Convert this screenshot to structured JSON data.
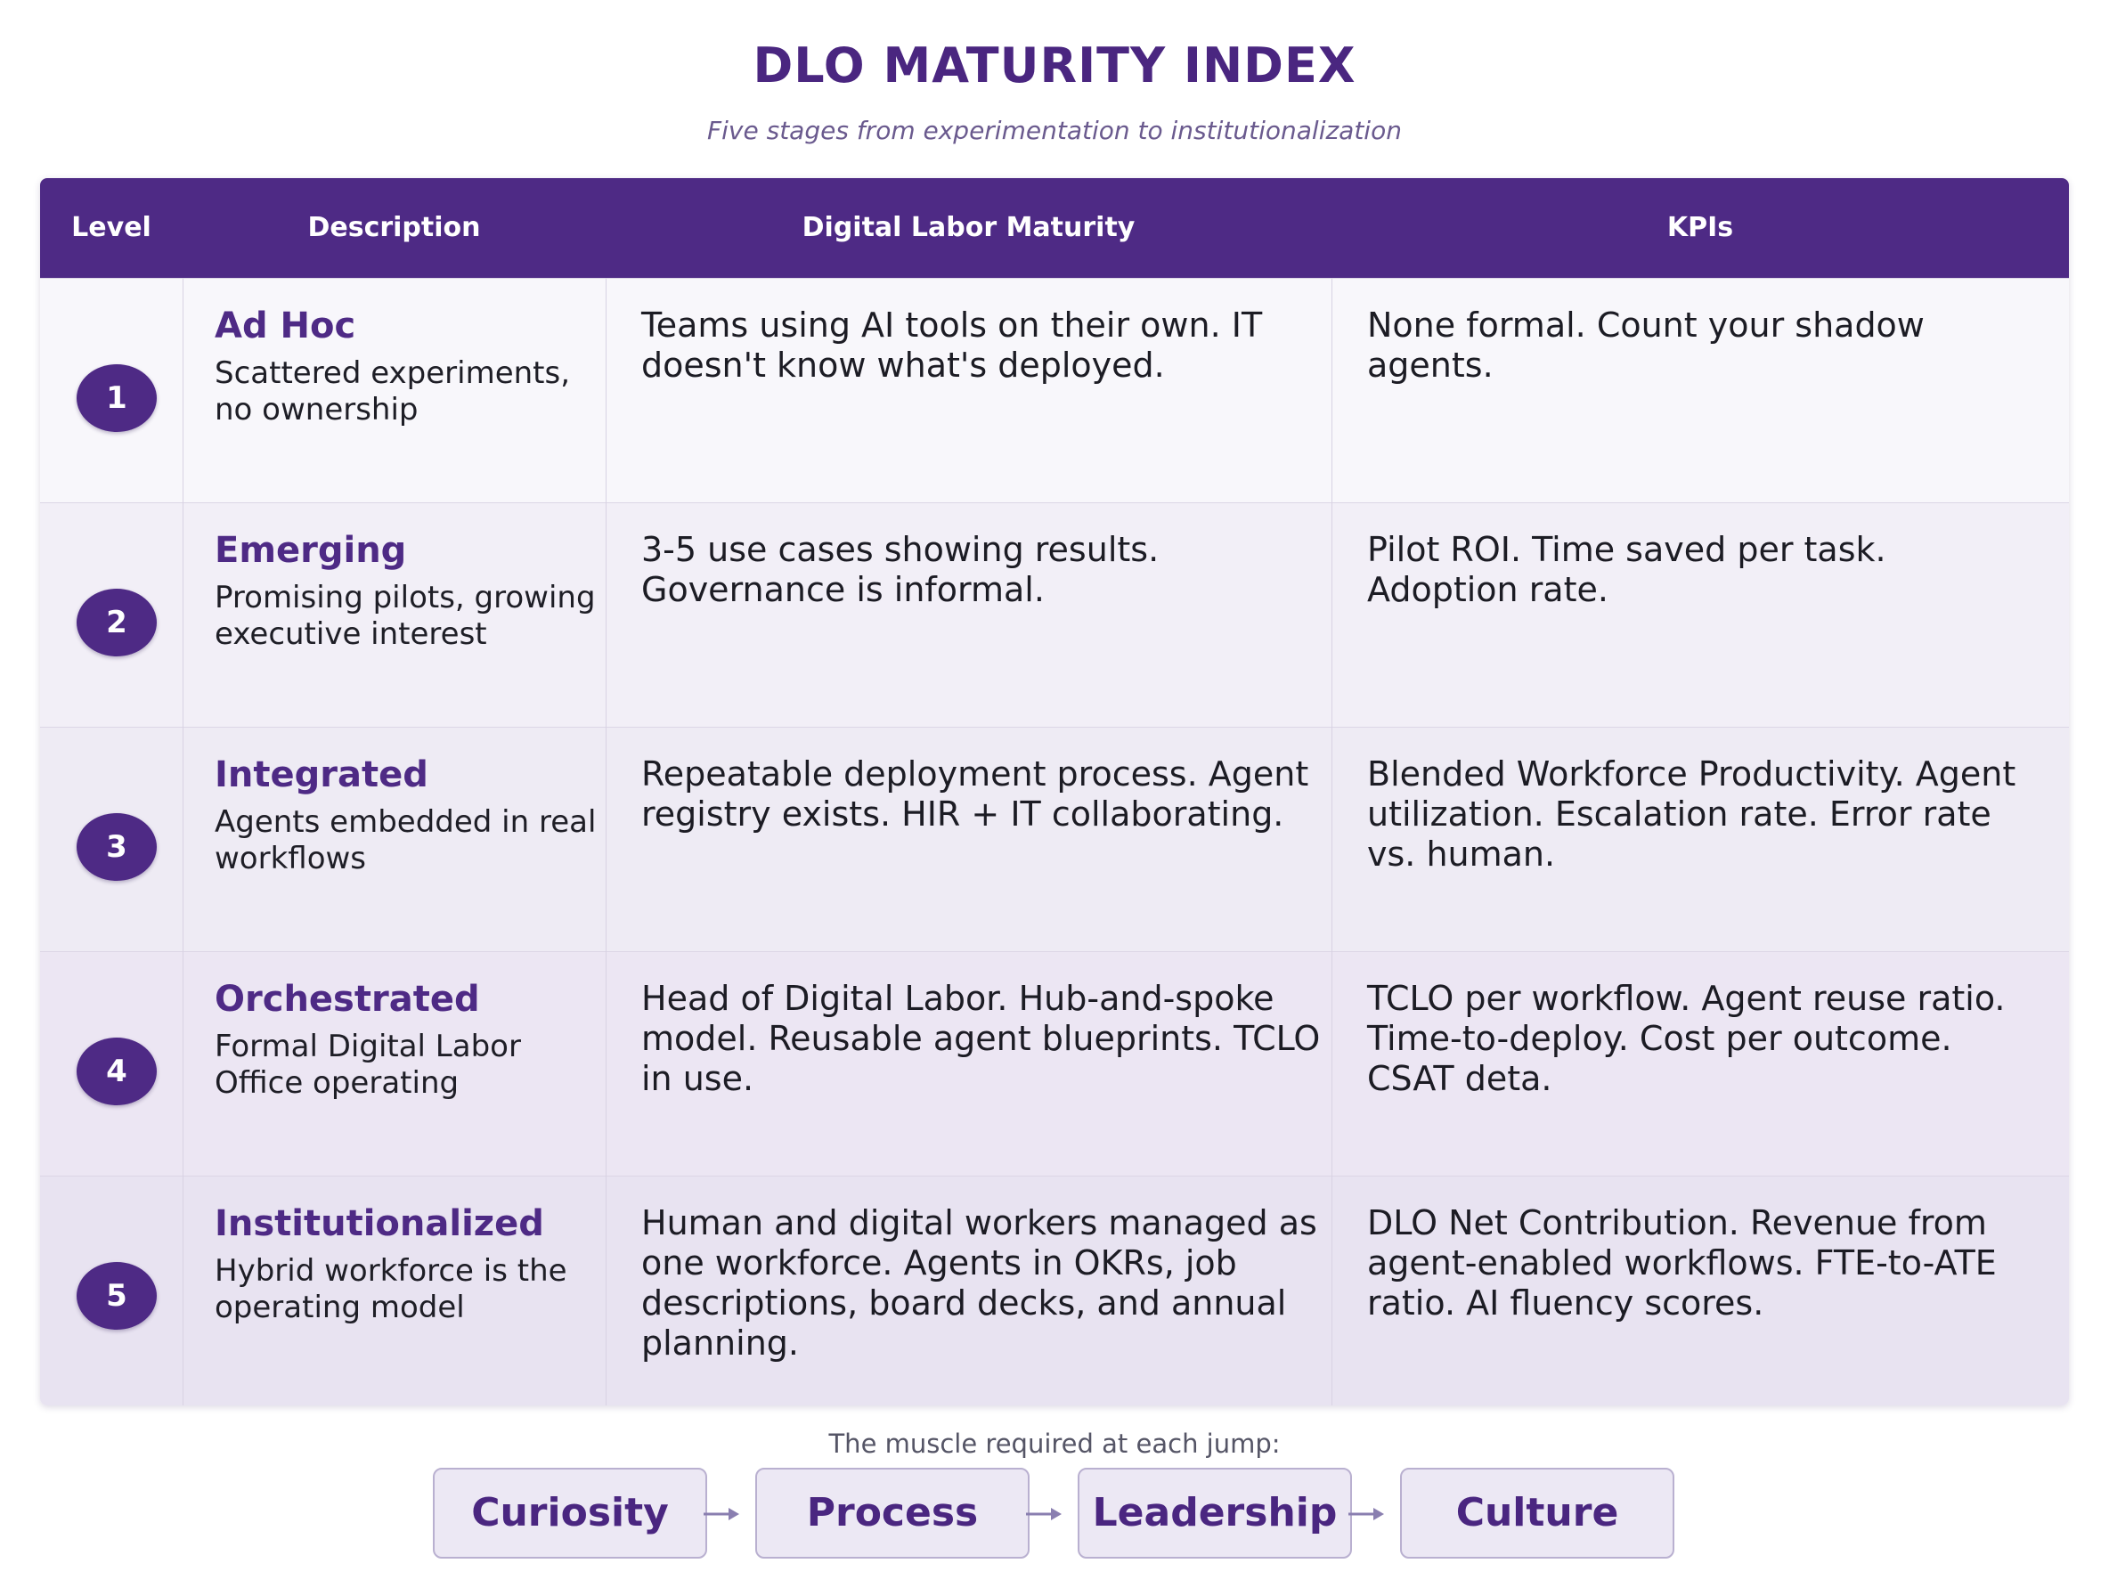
{
  "title": "DLO MATURITY INDEX",
  "subtitle": "Five stages from experimentation to institutionalization",
  "table": {
    "headers": {
      "level": "Level",
      "description": "Description",
      "maturity": "Digital Labor Maturity",
      "kpis": "KPIs"
    },
    "rows": [
      {
        "level": "1",
        "name": "Ad Hoc",
        "description": "Scattered experiments, no ownership",
        "maturity": "Teams using AI tools on their own. IT doesn't know what's deployed.",
        "kpis": "None formal. Count your shadow agents.",
        "bg": "#f8f7fb"
      },
      {
        "level": "2",
        "name": "Emerging",
        "description": "Promising pilots, growing executive interest",
        "maturity": "3-5 use cases showing results. Governance is informal.",
        "kpis": "Pilot ROI. Time saved per task. Adoption rate.",
        "bg": "#f2eff7"
      },
      {
        "level": "3",
        "name": "Integrated",
        "description": "Agents embedded in real workflows",
        "maturity": "Repeatable deployment process. Agent registry exists. HIR + IT collaborating.",
        "kpis": "Blended Workforce Productivity. Agent utilization. Escalation rate. Error rate vs. human.",
        "bg": "#eeebf4"
      },
      {
        "level": "4",
        "name": "Orchestrated",
        "description": "Formal Digital Labor Office operating",
        "maturity": "Head of Digital Labor. Hub-and-spoke model. Reusable agent blueprints. TCLO in use.",
        "kpis": "TCLO per workflow. Agent reuse ratio. Time-to-deploy. Cost per outcome. CSAT deta.",
        "bg": "#ece6f3"
      },
      {
        "level": "5",
        "name": "Institutionalized",
        "description": "Hybrid workforce is the operating model",
        "maturity": "Human and digital workers managed as one workforce. Agents in OKRs, job descriptions, board decks, and annual planning.",
        "kpis": "DLO Net Contribution. Revenue from agent-enabled workflows. FTE-to-ATE ratio. AI fluency scores.",
        "bg": "#e8e3f1"
      }
    ]
  },
  "jumps": {
    "label": "The muscle required at each jump:",
    "steps": [
      "Curiosity",
      "Process",
      "Leadership",
      "Culture"
    ]
  },
  "colors": {
    "accent": "#4e2a85",
    "header_bg": "#4e2a85",
    "box_bg": "#ece8f4"
  }
}
